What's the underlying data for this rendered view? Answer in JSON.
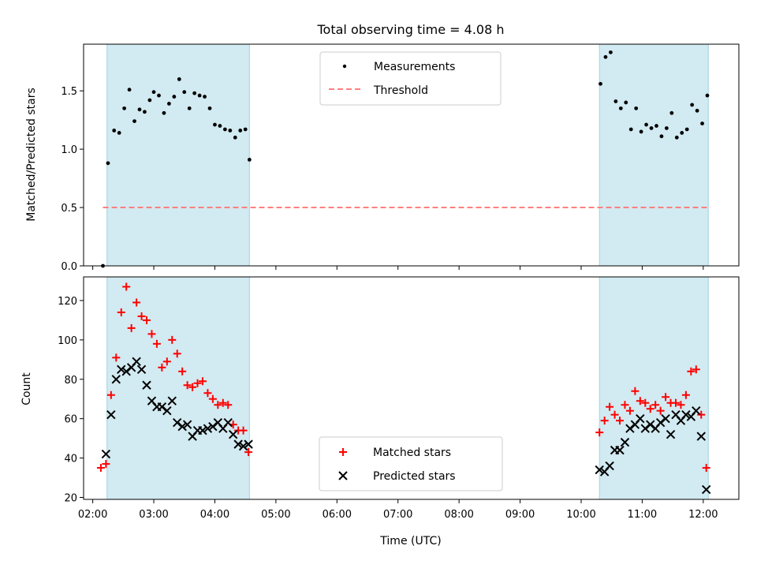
{
  "figure": {
    "title": "Total observing time = 4.08 h"
  },
  "colors": {
    "band": "#add8e6",
    "measurement": "#000000",
    "threshold": "#ff7f7f",
    "matched": "#ff0000",
    "predicted": "#000000"
  },
  "chart_data": [
    {
      "type": "scatter",
      "ylabel": "Matched/Predicted stars",
      "xlim": [
        "01:51",
        "12:35"
      ],
      "ylim": [
        0,
        1.9
      ],
      "yticks": [
        "0.0",
        "0.5",
        "1.0",
        "1.5"
      ],
      "grid": false,
      "legend": {
        "position": "top-center",
        "entries": [
          "Measurements",
          "Threshold"
        ]
      },
      "observing_windows": [
        [
          "02:14",
          "04:34"
        ],
        [
          "10:18",
          "12:05"
        ]
      ],
      "threshold": {
        "name": "Threshold",
        "value": 0.5,
        "x_range": [
          "02:10",
          "12:07"
        ],
        "style": "dashed"
      },
      "series": [
        {
          "name": "Measurements",
          "points": [
            [
              "02:10",
              0.0
            ],
            [
              "02:15",
              0.88
            ],
            [
              "02:21",
              1.16
            ],
            [
              "02:26",
              1.14
            ],
            [
              "02:31",
              1.35
            ],
            [
              "02:36",
              1.51
            ],
            [
              "02:41",
              1.24
            ],
            [
              "02:46",
              1.34
            ],
            [
              "02:51",
              1.32
            ],
            [
              "02:56",
              1.42
            ],
            [
              "03:00",
              1.49
            ],
            [
              "03:05",
              1.46
            ],
            [
              "03:10",
              1.31
            ],
            [
              "03:15",
              1.39
            ],
            [
              "03:20",
              1.45
            ],
            [
              "03:25",
              1.6
            ],
            [
              "03:30",
              1.49
            ],
            [
              "03:35",
              1.35
            ],
            [
              "03:40",
              1.48
            ],
            [
              "03:45",
              1.46
            ],
            [
              "03:50",
              1.45
            ],
            [
              "03:55",
              1.35
            ],
            [
              "04:00",
              1.21
            ],
            [
              "04:05",
              1.2
            ],
            [
              "04:10",
              1.17
            ],
            [
              "04:15",
              1.16
            ],
            [
              "04:20",
              1.1
            ],
            [
              "04:25",
              1.16
            ],
            [
              "04:30",
              1.17
            ],
            [
              "04:34",
              0.91
            ],
            [
              "10:19",
              1.56
            ],
            [
              "10:24",
              1.79
            ],
            [
              "10:29",
              1.83
            ],
            [
              "10:34",
              1.41
            ],
            [
              "10:39",
              1.35
            ],
            [
              "10:44",
              1.4
            ],
            [
              "10:49",
              1.17
            ],
            [
              "10:54",
              1.35
            ],
            [
              "10:59",
              1.15
            ],
            [
              "11:04",
              1.21
            ],
            [
              "11:09",
              1.18
            ],
            [
              "11:14",
              1.2
            ],
            [
              "11:19",
              1.11
            ],
            [
              "11:24",
              1.18
            ],
            [
              "11:29",
              1.31
            ],
            [
              "11:34",
              1.1
            ],
            [
              "11:39",
              1.14
            ],
            [
              "11:44",
              1.17
            ],
            [
              "11:49",
              1.38
            ],
            [
              "11:54",
              1.33
            ],
            [
              "11:59",
              1.22
            ],
            [
              "12:04",
              1.46
            ]
          ]
        }
      ]
    },
    {
      "type": "scatter",
      "xlabel": "Time (UTC)",
      "ylabel": "Count",
      "xlim": [
        "01:51",
        "12:35"
      ],
      "ylim": [
        19,
        132
      ],
      "yticks": [
        "20",
        "40",
        "60",
        "80",
        "100",
        "120"
      ],
      "xticks": [
        "02:00",
        "03:00",
        "04:00",
        "05:00",
        "06:00",
        "07:00",
        "08:00",
        "09:00",
        "10:00",
        "11:00",
        "12:00"
      ],
      "grid": false,
      "legend": {
        "position": "bottom-center",
        "entries": [
          "Matched stars",
          "Predicted stars"
        ]
      },
      "observing_windows": [
        [
          "02:14",
          "04:34"
        ],
        [
          "10:18",
          "12:05"
        ]
      ],
      "series": [
        {
          "name": "Matched stars",
          "marker": "+",
          "points": [
            [
              "02:08",
              35
            ],
            [
              "02:13",
              37
            ],
            [
              "02:18",
              72
            ],
            [
              "02:23",
              91
            ],
            [
              "02:28",
              114
            ],
            [
              "02:33",
              127
            ],
            [
              "02:38",
              106
            ],
            [
              "02:43",
              119
            ],
            [
              "02:48",
              112
            ],
            [
              "02:53",
              110
            ],
            [
              "02:58",
              103
            ],
            [
              "03:03",
              98
            ],
            [
              "03:08",
              86
            ],
            [
              "03:13",
              89
            ],
            [
              "03:18",
              100
            ],
            [
              "03:23",
              93
            ],
            [
              "03:28",
              84
            ],
            [
              "03:33",
              77
            ],
            [
              "03:38",
              76
            ],
            [
              "03:43",
              78
            ],
            [
              "03:48",
              79
            ],
            [
              "03:53",
              73
            ],
            [
              "03:58",
              70
            ],
            [
              "04:03",
              67
            ],
            [
              "04:08",
              68
            ],
            [
              "04:13",
              67
            ],
            [
              "04:18",
              57
            ],
            [
              "04:23",
              54
            ],
            [
              "04:28",
              54
            ],
            [
              "04:33",
              43
            ],
            [
              "10:18",
              53
            ],
            [
              "10:23",
              59
            ],
            [
              "10:28",
              66
            ],
            [
              "10:33",
              62
            ],
            [
              "10:38",
              59
            ],
            [
              "10:43",
              67
            ],
            [
              "10:48",
              64
            ],
            [
              "10:53",
              74
            ],
            [
              "10:58",
              69
            ],
            [
              "11:03",
              68
            ],
            [
              "11:08",
              65
            ],
            [
              "11:13",
              67
            ],
            [
              "11:18",
              64
            ],
            [
              "11:23",
              71
            ],
            [
              "11:28",
              68
            ],
            [
              "11:33",
              68
            ],
            [
              "11:38",
              67
            ],
            [
              "11:43",
              72
            ],
            [
              "11:48",
              84
            ],
            [
              "11:53",
              85
            ],
            [
              "11:58",
              62
            ],
            [
              "12:03",
              35
            ]
          ]
        },
        {
          "name": "Predicted stars",
          "marker": "x",
          "points": [
            [
              "02:13",
              42
            ],
            [
              "02:18",
              62
            ],
            [
              "02:23",
              80
            ],
            [
              "02:28",
              85
            ],
            [
              "02:33",
              84
            ],
            [
              "02:38",
              86
            ],
            [
              "02:43",
              89
            ],
            [
              "02:48",
              85
            ],
            [
              "02:53",
              77
            ],
            [
              "02:58",
              69
            ],
            [
              "03:03",
              66
            ],
            [
              "03:08",
              66
            ],
            [
              "03:13",
              64
            ],
            [
              "03:18",
              69
            ],
            [
              "03:23",
              58
            ],
            [
              "03:28",
              56
            ],
            [
              "03:33",
              57
            ],
            [
              "03:38",
              51
            ],
            [
              "03:43",
              54
            ],
            [
              "03:48",
              54
            ],
            [
              "03:53",
              55
            ],
            [
              "03:58",
              56
            ],
            [
              "04:03",
              58
            ],
            [
              "04:08",
              55
            ],
            [
              "04:13",
              58
            ],
            [
              "04:18",
              52
            ],
            [
              "04:23",
              47
            ],
            [
              "04:28",
              46
            ],
            [
              "04:33",
              47
            ],
            [
              "10:18",
              34
            ],
            [
              "10:23",
              33
            ],
            [
              "10:28",
              36
            ],
            [
              "10:33",
              44
            ],
            [
              "10:38",
              44
            ],
            [
              "10:43",
              48
            ],
            [
              "10:48",
              55
            ],
            [
              "10:53",
              57
            ],
            [
              "10:58",
              60
            ],
            [
              "11:03",
              55
            ],
            [
              "11:08",
              57
            ],
            [
              "11:13",
              55
            ],
            [
              "11:18",
              58
            ],
            [
              "11:23",
              60
            ],
            [
              "11:28",
              52
            ],
            [
              "11:33",
              62
            ],
            [
              "11:38",
              59
            ],
            [
              "11:43",
              62
            ],
            [
              "11:48",
              61
            ],
            [
              "11:53",
              64
            ],
            [
              "11:58",
              51
            ],
            [
              "12:03",
              24
            ]
          ]
        }
      ]
    }
  ]
}
